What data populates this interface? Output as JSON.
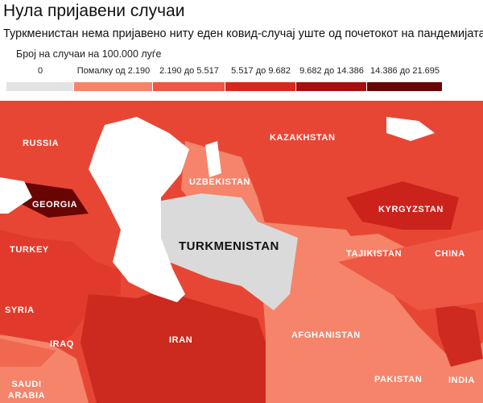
{
  "title": "Нула пријавени случаи",
  "subtitle": "Туркменистан нема пријавено ниту еден ковид-случај уште од почетокот на пандемијата.",
  "legend": {
    "title": "Број на случаи на 100.000 луѓе",
    "items": [
      {
        "label": "0",
        "color": "#e3e3e3"
      },
      {
        "label": "Помалку од 2.190",
        "color": "#f5846b"
      },
      {
        "label": "2.190 до 5.517",
        "color": "#ee5743"
      },
      {
        "label": "5.517 до 9.682",
        "color": "#d6281f"
      },
      {
        "label": "9.682 до 14.386",
        "color": "#a50f0f"
      },
      {
        "label": "14.386 до 21.695",
        "color": "#680606"
      }
    ]
  },
  "countries": [
    {
      "label": "RUSSIA"
    },
    {
      "label": "KAZAKHSTAN"
    },
    {
      "label": "UZBEKISTAN"
    },
    {
      "label": "GEORGIA"
    },
    {
      "label": "KYRGYZSTAN"
    },
    {
      "label": "TURKEY"
    },
    {
      "label": "TURKMENISTAN"
    },
    {
      "label": "TAJIKISTAN"
    },
    {
      "label": "CHINA"
    },
    {
      "label": "SYRIA"
    },
    {
      "label": "IRAN"
    },
    {
      "label": "IRAQ"
    },
    {
      "label": "AFGHANISTAN"
    },
    {
      "label": "PAKISTAN"
    },
    {
      "label": "INDIA"
    },
    {
      "label": "SAUDI ARABIA"
    }
  ]
}
